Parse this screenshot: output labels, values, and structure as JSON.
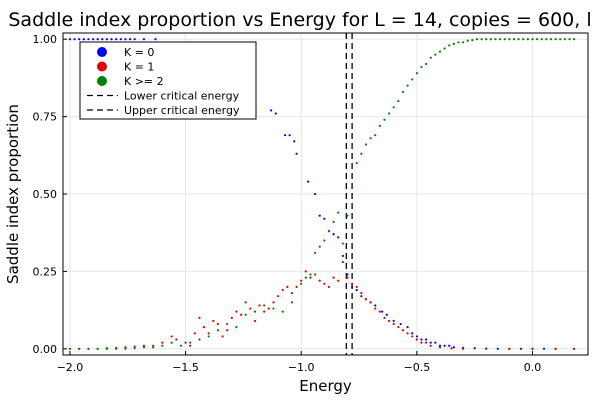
{
  "chart_data": {
    "type": "scatter",
    "title": "Saddle index proportion vs Energy for L = 14, copies = 600, l",
    "xlabel": "Energy",
    "ylabel": "Saddle index proportion",
    "xlim": [
      -2.03,
      0.24
    ],
    "ylim": [
      -0.02,
      1.02
    ],
    "x_ticks": [
      -2.0,
      -1.5,
      -1.0,
      -0.5,
      0.0
    ],
    "x_tick_labels": [
      "−2.0",
      "−1.5",
      "−1.0",
      "−0.5",
      "0.0"
    ],
    "y_ticks": [
      0.0,
      0.25,
      0.5,
      0.75,
      1.0
    ],
    "y_tick_labels": [
      "0.00",
      "0.25",
      "0.50",
      "0.75",
      "1.00"
    ],
    "grid": true,
    "legend_position": "top-left",
    "series": [
      {
        "name": "K = 0",
        "color": "#0000ff",
        "points": [
          [
            -2.0,
            1.0
          ],
          [
            -1.98,
            1.0
          ],
          [
            -1.96,
            1.0
          ],
          [
            -1.94,
            1.0
          ],
          [
            -1.92,
            1.0
          ],
          [
            -1.9,
            1.0
          ],
          [
            -1.88,
            1.0
          ],
          [
            -1.86,
            1.0
          ],
          [
            -1.84,
            1.0
          ],
          [
            -1.82,
            1.0
          ],
          [
            -1.8,
            1.0
          ],
          [
            -1.78,
            1.0
          ],
          [
            -1.76,
            1.0
          ],
          [
            -1.74,
            1.0
          ],
          [
            -1.72,
            1.0
          ],
          [
            -1.68,
            1.0
          ],
          [
            -1.63,
            1.0
          ],
          [
            -1.13,
            0.77
          ],
          [
            -1.11,
            0.76
          ],
          [
            -1.07,
            0.69
          ],
          [
            -1.05,
            0.69
          ],
          [
            -1.03,
            0.67
          ],
          [
            -1.02,
            0.63
          ],
          [
            -0.97,
            0.54
          ],
          [
            -0.94,
            0.5
          ],
          [
            -0.92,
            0.43
          ],
          [
            -0.9,
            0.42
          ],
          [
            -0.88,
            0.38
          ],
          [
            -0.86,
            0.37
          ],
          [
            -0.84,
            0.36
          ],
          [
            -0.82,
            0.3
          ],
          [
            -0.8,
            0.24
          ],
          [
            -0.78,
            0.2
          ],
          [
            -0.76,
            0.19
          ],
          [
            -0.74,
            0.17
          ],
          [
            -0.72,
            0.16
          ],
          [
            -0.7,
            0.15
          ],
          [
            -0.68,
            0.14
          ],
          [
            -0.65,
            0.12
          ],
          [
            -0.63,
            0.11
          ],
          [
            -0.6,
            0.09
          ],
          [
            -0.57,
            0.08
          ],
          [
            -0.54,
            0.07
          ],
          [
            -0.52,
            0.05
          ],
          [
            -0.5,
            0.04
          ],
          [
            -0.48,
            0.03
          ],
          [
            -0.46,
            0.03
          ],
          [
            -0.44,
            0.02
          ],
          [
            -0.42,
            0.02
          ],
          [
            -0.4,
            0.01
          ],
          [
            -0.38,
            0.01
          ],
          [
            -0.36,
            0.01
          ],
          [
            -0.34,
            0.005
          ],
          [
            -0.3,
            0.003
          ],
          [
            -0.25,
            0.002
          ],
          [
            -0.2,
            0.001
          ],
          [
            -0.15,
            0.0
          ],
          [
            -0.1,
            0.0
          ],
          [
            -0.05,
            0.0
          ],
          [
            0.0,
            0.0
          ],
          [
            0.05,
            0.0
          ],
          [
            0.1,
            0.0
          ],
          [
            0.18,
            0.0
          ]
        ]
      },
      {
        "name": "K = 1",
        "color": "#e30000",
        "points": [
          [
            -2.0,
            0.0
          ],
          [
            -1.96,
            0.0
          ],
          [
            -1.92,
            0.0
          ],
          [
            -1.88,
            0.0
          ],
          [
            -1.84,
            0.002
          ],
          [
            -1.8,
            0.003
          ],
          [
            -1.76,
            0.005
          ],
          [
            -1.72,
            0.007
          ],
          [
            -1.68,
            0.01
          ],
          [
            -1.64,
            0.005
          ],
          [
            -1.6,
            0.02
          ],
          [
            -1.56,
            0.04
          ],
          [
            -1.54,
            0.03
          ],
          [
            -1.5,
            0.02
          ],
          [
            -1.48,
            0.01
          ],
          [
            -1.46,
            0.05
          ],
          [
            -1.44,
            0.1
          ],
          [
            -1.42,
            0.07
          ],
          [
            -1.4,
            0.05
          ],
          [
            -1.38,
            0.09
          ],
          [
            -1.36,
            0.08
          ],
          [
            -1.34,
            0.04
          ],
          [
            -1.32,
            0.06
          ],
          [
            -1.3,
            0.1
          ],
          [
            -1.28,
            0.12
          ],
          [
            -1.26,
            0.11
          ],
          [
            -1.24,
            0.15
          ],
          [
            -1.22,
            0.13
          ],
          [
            -1.2,
            0.09
          ],
          [
            -1.18,
            0.14
          ],
          [
            -1.16,
            0.12
          ],
          [
            -1.14,
            0.13
          ],
          [
            -1.12,
            0.15
          ],
          [
            -1.1,
            0.17
          ],
          [
            -1.08,
            0.19
          ],
          [
            -1.06,
            0.2
          ],
          [
            -1.04,
            0.18
          ],
          [
            -1.02,
            0.2
          ],
          [
            -1.0,
            0.22
          ],
          [
            -0.98,
            0.25
          ],
          [
            -0.96,
            0.23
          ],
          [
            -0.94,
            0.24
          ],
          [
            -0.92,
            0.22
          ],
          [
            -0.9,
            0.21
          ],
          [
            -0.88,
            0.2
          ],
          [
            -0.86,
            0.23
          ],
          [
            -0.84,
            0.22
          ],
          [
            -0.82,
            0.28
          ],
          [
            -0.8,
            0.23
          ],
          [
            -0.78,
            0.21
          ],
          [
            -0.76,
            0.2
          ],
          [
            -0.74,
            0.18
          ],
          [
            -0.72,
            0.16
          ],
          [
            -0.7,
            0.15
          ],
          [
            -0.68,
            0.13
          ],
          [
            -0.66,
            0.12
          ],
          [
            -0.64,
            0.1
          ],
          [
            -0.62,
            0.09
          ],
          [
            -0.6,
            0.08
          ],
          [
            -0.58,
            0.07
          ],
          [
            -0.56,
            0.06
          ],
          [
            -0.54,
            0.05
          ],
          [
            -0.52,
            0.04
          ],
          [
            -0.5,
            0.03
          ],
          [
            -0.48,
            0.02
          ],
          [
            -0.46,
            0.02
          ],
          [
            -0.44,
            0.01
          ],
          [
            -0.4,
            0.005
          ],
          [
            -0.35,
            0.002
          ],
          [
            -0.3,
            0.0
          ],
          [
            -0.2,
            0.0
          ],
          [
            -0.1,
            0.0
          ],
          [
            0.0,
            0.0
          ],
          [
            0.1,
            0.0
          ],
          [
            0.18,
            0.0
          ]
        ]
      },
      {
        "name": "K >= 2",
        "color": "#008000",
        "points": [
          [
            -2.0,
            0.0
          ],
          [
            -1.96,
            0.0
          ],
          [
            -1.92,
            0.0
          ],
          [
            -1.88,
            0.0
          ],
          [
            -1.84,
            0.0
          ],
          [
            -1.8,
            0.0
          ],
          [
            -1.76,
            0.0
          ],
          [
            -1.72,
            0.002
          ],
          [
            -1.68,
            0.005
          ],
          [
            -1.64,
            0.01
          ],
          [
            -1.6,
            0.01
          ],
          [
            -1.56,
            0.02
          ],
          [
            -1.52,
            0.01
          ],
          [
            -1.48,
            0.02
          ],
          [
            -1.44,
            0.03
          ],
          [
            -1.4,
            0.04
          ],
          [
            -1.36,
            0.06
          ],
          [
            -1.32,
            0.08
          ],
          [
            -1.28,
            0.07
          ],
          [
            -1.24,
            0.11
          ],
          [
            -1.2,
            0.12
          ],
          [
            -1.16,
            0.14
          ],
          [
            -1.12,
            0.13
          ],
          [
            -1.08,
            0.12
          ],
          [
            -1.04,
            0.15
          ],
          [
            -1.0,
            0.21
          ],
          [
            -0.98,
            0.23
          ],
          [
            -0.96,
            0.24
          ],
          [
            -0.94,
            0.31
          ],
          [
            -0.92,
            0.33
          ],
          [
            -0.9,
            0.35
          ],
          [
            -0.88,
            0.38
          ],
          [
            -0.86,
            0.41
          ],
          [
            -0.84,
            0.44
          ],
          [
            -0.82,
            0.34
          ],
          [
            -0.8,
            0.43
          ],
          [
            -0.78,
            0.52
          ],
          [
            -0.76,
            0.6
          ],
          [
            -0.74,
            0.63
          ],
          [
            -0.72,
            0.66
          ],
          [
            -0.7,
            0.68
          ],
          [
            -0.68,
            0.69
          ],
          [
            -0.66,
            0.72
          ],
          [
            -0.64,
            0.74
          ],
          [
            -0.62,
            0.76
          ],
          [
            -0.6,
            0.78
          ],
          [
            -0.58,
            0.8
          ],
          [
            -0.56,
            0.83
          ],
          [
            -0.54,
            0.85
          ],
          [
            -0.52,
            0.87
          ],
          [
            -0.5,
            0.89
          ],
          [
            -0.48,
            0.91
          ],
          [
            -0.46,
            0.92
          ],
          [
            -0.44,
            0.94
          ],
          [
            -0.42,
            0.95
          ],
          [
            -0.4,
            0.96
          ],
          [
            -0.38,
            0.97
          ],
          [
            -0.36,
            0.98
          ],
          [
            -0.34,
            0.985
          ],
          [
            -0.32,
            0.99
          ],
          [
            -0.3,
            0.99
          ],
          [
            -0.28,
            0.995
          ],
          [
            -0.26,
            0.997
          ],
          [
            -0.24,
            1.0
          ],
          [
            -0.22,
            1.0
          ],
          [
            -0.2,
            1.0
          ],
          [
            -0.18,
            1.0
          ],
          [
            -0.16,
            1.0
          ],
          [
            -0.14,
            1.0
          ],
          [
            -0.12,
            1.0
          ],
          [
            -0.1,
            1.0
          ],
          [
            -0.08,
            1.0
          ],
          [
            -0.06,
            1.0
          ],
          [
            -0.04,
            1.0
          ],
          [
            -0.02,
            1.0
          ],
          [
            0.0,
            1.0
          ],
          [
            0.02,
            1.0
          ],
          [
            0.04,
            1.0
          ],
          [
            0.06,
            1.0
          ],
          [
            0.08,
            1.0
          ],
          [
            0.1,
            1.0
          ],
          [
            0.12,
            1.0
          ],
          [
            0.14,
            1.0
          ],
          [
            0.16,
            1.0
          ],
          [
            0.18,
            1.0
          ]
        ]
      }
    ],
    "vlines": [
      {
        "name": "Lower critical energy",
        "x": -0.805,
        "color": "#000000",
        "dash": "dashed"
      },
      {
        "name": "Upper critical energy",
        "x": -0.78,
        "color": "#000000",
        "dash": "dashed"
      }
    ]
  }
}
